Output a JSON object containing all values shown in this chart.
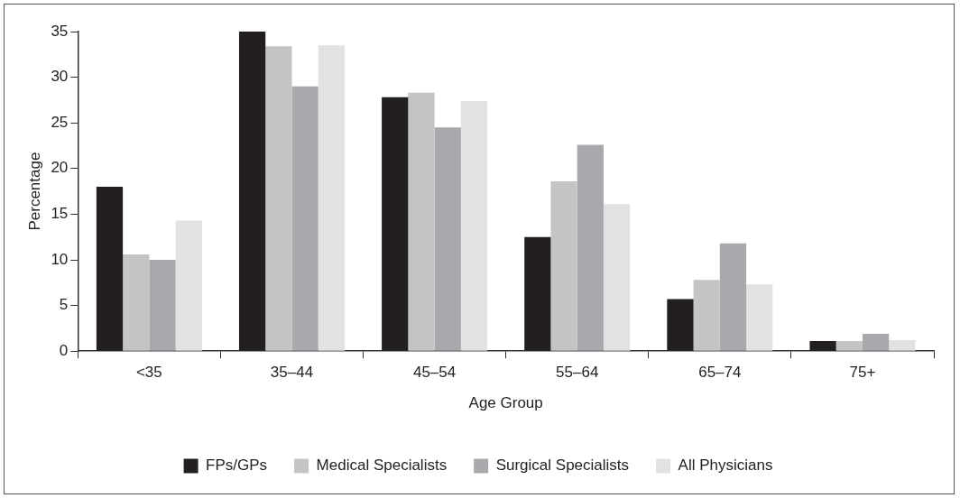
{
  "chart_data": {
    "type": "bar",
    "xlabel": "Age Group",
    "ylabel": "Percentage",
    "categories": [
      "<35",
      "35–44",
      "45–54",
      "55–64",
      "65–74",
      "75+"
    ],
    "series": [
      {
        "name": "FPs/GPs",
        "color": "#231f20",
        "values": [
          18,
          35,
          27.8,
          12.5,
          5.7,
          1.1
        ]
      },
      {
        "name": "Medical Specialists",
        "color": "#c4c4c4",
        "values": [
          10.6,
          33.4,
          28.3,
          18.6,
          7.8,
          1.1
        ]
      },
      {
        "name": "Surgical Specialists",
        "color": "#a7a9ac",
        "values": [
          10,
          29,
          24.5,
          22.6,
          11.8,
          1.9
        ]
      },
      {
        "name": "All Physicians",
        "color": "#e2e2e2",
        "values": [
          14.3,
          33.5,
          27.4,
          16.1,
          7.3,
          1.2
        ]
      }
    ],
    "ylim": [
      0,
      35
    ],
    "yticks": [
      0,
      5,
      10,
      15,
      20,
      25,
      30,
      35
    ],
    "grid": false,
    "legend": "bottom"
  }
}
